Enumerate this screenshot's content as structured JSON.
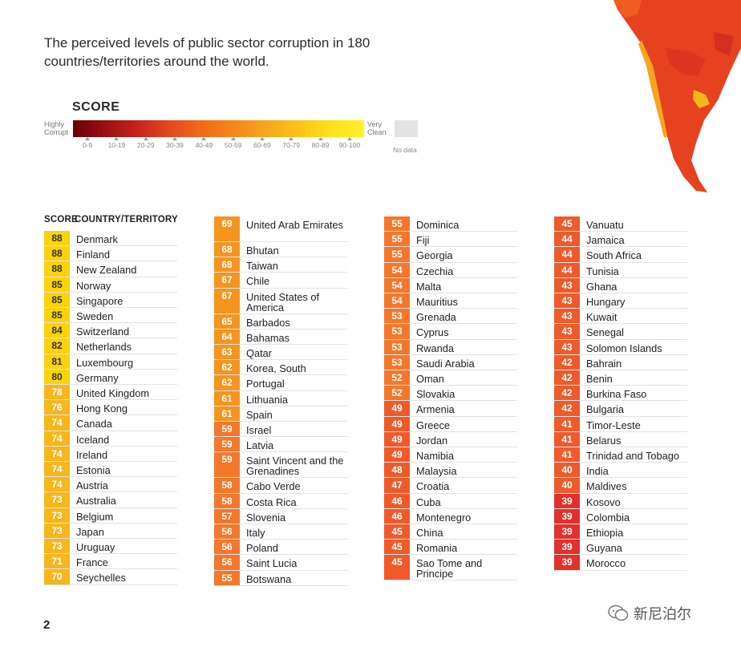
{
  "intro_text": "The perceived levels of public sector corruption in 180 countries/territories around the world.",
  "legend": {
    "title": "SCORE",
    "left_label": "Highly Corrupt",
    "right_label": "Very Clean",
    "ranges": [
      "0-9",
      "10-19",
      "20-29",
      "30-39",
      "40-49",
      "50-59",
      "60-69",
      "70-79",
      "80-89",
      "90-100"
    ],
    "no_data": "No data"
  },
  "table": {
    "header_score": "SCORE",
    "header_country": "COUNTRY/TERRITORY"
  },
  "colors": {
    "s80_89": "#fcd20a",
    "s70_79": "#f7b61b",
    "s60_69": "#f5951d",
    "s50_59": "#f4772a",
    "s40_49": "#ef5a2b",
    "s30_39": "#e2302c"
  },
  "columns": [
    [
      {
        "score": "88",
        "name": "Denmark"
      },
      {
        "score": "88",
        "name": "Finland"
      },
      {
        "score": "88",
        "name": "New Zealand"
      },
      {
        "score": "85",
        "name": "Norway"
      },
      {
        "score": "85",
        "name": "Singapore"
      },
      {
        "score": "85",
        "name": "Sweden"
      },
      {
        "score": "84",
        "name": "Switzerland"
      },
      {
        "score": "82",
        "name": "Netherlands"
      },
      {
        "score": "81",
        "name": "Luxembourg"
      },
      {
        "score": "80",
        "name": "Germany"
      },
      {
        "score": "78",
        "name": "United Kingdom"
      },
      {
        "score": "76",
        "name": "Hong Kong"
      },
      {
        "score": "74",
        "name": "Canada"
      },
      {
        "score": "74",
        "name": "Iceland"
      },
      {
        "score": "74",
        "name": "Ireland"
      },
      {
        "score": "74",
        "name": "Estonia"
      },
      {
        "score": "74",
        "name": "Austria"
      },
      {
        "score": "73",
        "name": "Australia"
      },
      {
        "score": "73",
        "name": "Belgium"
      },
      {
        "score": "73",
        "name": "Japan"
      },
      {
        "score": "73",
        "name": "Uruguay"
      },
      {
        "score": "71",
        "name": "France"
      },
      {
        "score": "70",
        "name": "Seychelles"
      }
    ],
    [
      {
        "score": "69",
        "name": "United Arab Emirates"
      },
      {
        "score": "68",
        "name": "Bhutan"
      },
      {
        "score": "68",
        "name": "Taiwan"
      },
      {
        "score": "67",
        "name": "Chile"
      },
      {
        "score": "67",
        "name": "United States of America"
      },
      {
        "score": "65",
        "name": "Barbados"
      },
      {
        "score": "64",
        "name": "Bahamas"
      },
      {
        "score": "63",
        "name": "Qatar"
      },
      {
        "score": "62",
        "name": "Korea, South"
      },
      {
        "score": "62",
        "name": "Portugal"
      },
      {
        "score": "61",
        "name": "Lithuania"
      },
      {
        "score": "61",
        "name": "Spain"
      },
      {
        "score": "59",
        "name": "Israel"
      },
      {
        "score": "59",
        "name": "Latvia"
      },
      {
        "score": "59",
        "name": "Saint Vincent and the Grenadines"
      },
      {
        "score": "58",
        "name": "Cabo Verde"
      },
      {
        "score": "58",
        "name": "Costa Rica"
      },
      {
        "score": "57",
        "name": "Slovenia"
      },
      {
        "score": "56",
        "name": "Italy"
      },
      {
        "score": "56",
        "name": "Poland"
      },
      {
        "score": "56",
        "name": "Saint Lucia"
      },
      {
        "score": "55",
        "name": "Botswana"
      }
    ],
    [
      {
        "score": "55",
        "name": "Dominica"
      },
      {
        "score": "55",
        "name": "Fiji"
      },
      {
        "score": "55",
        "name": "Georgia"
      },
      {
        "score": "54",
        "name": "Czechia"
      },
      {
        "score": "54",
        "name": "Malta"
      },
      {
        "score": "54",
        "name": "Mauritius"
      },
      {
        "score": "53",
        "name": "Grenada"
      },
      {
        "score": "53",
        "name": "Cyprus"
      },
      {
        "score": "53",
        "name": "Rwanda"
      },
      {
        "score": "53",
        "name": "Saudi Arabia"
      },
      {
        "score": "52",
        "name": "Oman"
      },
      {
        "score": "52",
        "name": "Slovakia"
      },
      {
        "score": "49",
        "name": "Armenia"
      },
      {
        "score": "49",
        "name": "Greece"
      },
      {
        "score": "49",
        "name": "Jordan"
      },
      {
        "score": "49",
        "name": "Namibia"
      },
      {
        "score": "48",
        "name": "Malaysia"
      },
      {
        "score": "47",
        "name": "Croatia"
      },
      {
        "score": "46",
        "name": "Cuba"
      },
      {
        "score": "46",
        "name": "Montenegro"
      },
      {
        "score": "45",
        "name": "China"
      },
      {
        "score": "45",
        "name": "Romania"
      },
      {
        "score": "45",
        "name": "Sao Tome and Principe"
      }
    ],
    [
      {
        "score": "45",
        "name": "Vanuatu"
      },
      {
        "score": "44",
        "name": "Jamaica"
      },
      {
        "score": "44",
        "name": "South Africa"
      },
      {
        "score": "44",
        "name": "Tunisia"
      },
      {
        "score": "43",
        "name": "Ghana"
      },
      {
        "score": "43",
        "name": "Hungary"
      },
      {
        "score": "43",
        "name": "Kuwait"
      },
      {
        "score": "43",
        "name": "Senegal"
      },
      {
        "score": "43",
        "name": "Solomon Islands"
      },
      {
        "score": "42",
        "name": "Bahrain"
      },
      {
        "score": "42",
        "name": "Benin"
      },
      {
        "score": "42",
        "name": "Burkina Faso"
      },
      {
        "score": "42",
        "name": "Bulgaria"
      },
      {
        "score": "41",
        "name": "Timor-Leste"
      },
      {
        "score": "41",
        "name": "Belarus"
      },
      {
        "score": "41",
        "name": "Trinidad and Tobago"
      },
      {
        "score": "40",
        "name": "India"
      },
      {
        "score": "40",
        "name": "Maldives"
      },
      {
        "score": "39",
        "name": "Kosovo"
      },
      {
        "score": "39",
        "name": "Colombia"
      },
      {
        "score": "39",
        "name": "Ethiopia"
      },
      {
        "score": "39",
        "name": "Guyana"
      },
      {
        "score": "39",
        "name": "Morocco"
      }
    ]
  ],
  "page_number": "2",
  "watermark": "新尼泊尔"
}
